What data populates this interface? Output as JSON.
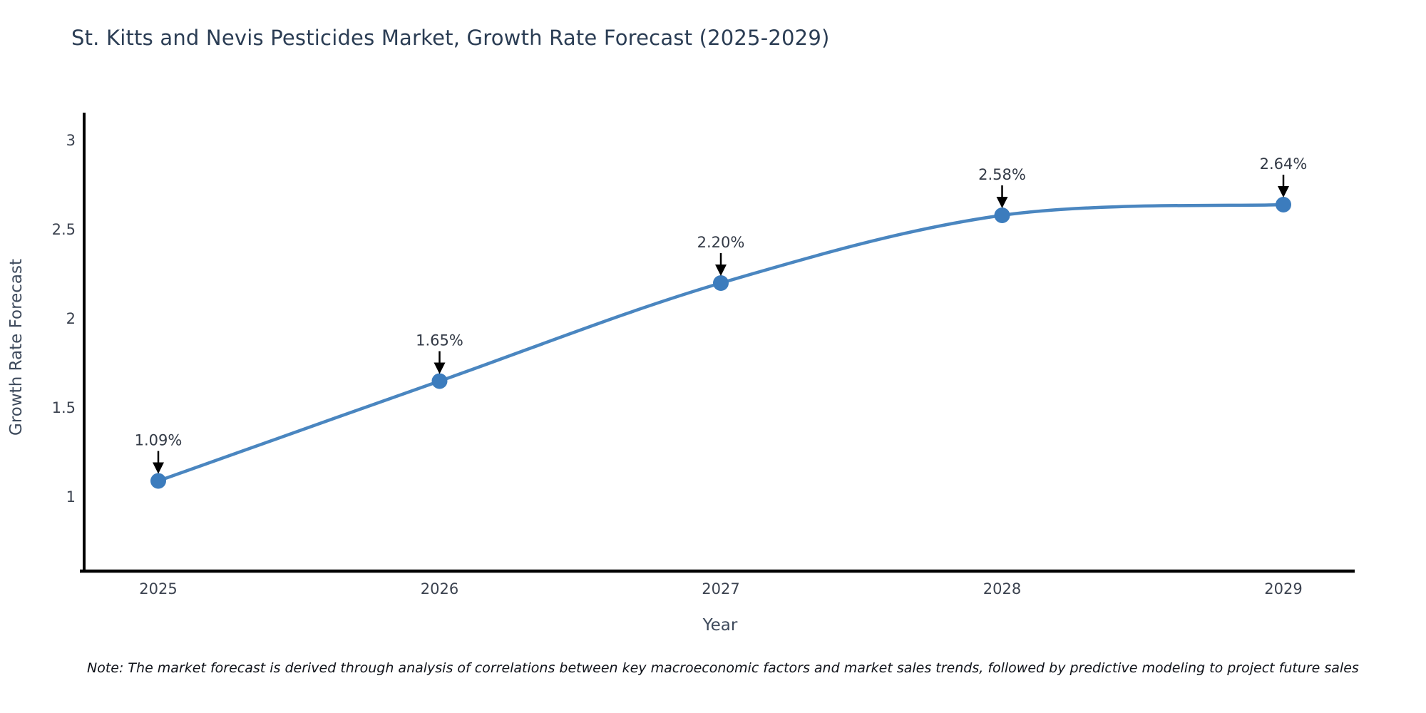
{
  "chart_data": {
    "type": "line",
    "title": "St. Kitts and Nevis Pesticides Market, Growth Rate Forecast (2025-2029)",
    "xlabel": "Year",
    "ylabel": "Growth Rate Forecast",
    "categories": [
      "2025",
      "2026",
      "2027",
      "2028",
      "2029"
    ],
    "series": [
      {
        "name": "Growth Rate Forecast",
        "values": [
          1.09,
          1.65,
          2.2,
          2.58,
          2.64
        ],
        "point_labels": [
          "1.09%",
          "1.65%",
          "2.20%",
          "2.58%",
          "2.64%"
        ]
      }
    ],
    "yticks": [
      1,
      1.5,
      2,
      2.5,
      3
    ],
    "ytick_labels": [
      "1",
      "1.5",
      "2",
      "2.5",
      "3"
    ],
    "ylim": [
      0.59,
      3.16
    ],
    "grid": false,
    "legend_position": "none",
    "line_color": "#4a86c0",
    "marker_color": "#3c7cbd",
    "axis_color": "#000000",
    "arrow_color": "#000000",
    "note": "Note: The market forecast is derived through analysis of correlations between key macroeconomic factors and market sales trends, followed by predictive modeling to project future sales"
  }
}
